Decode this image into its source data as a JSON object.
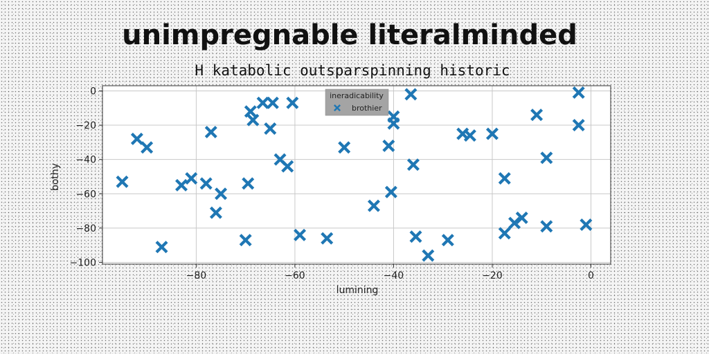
{
  "chart_data": {
    "type": "scatter",
    "title": "unimpregnable literalminded",
    "subtitle": "H katabolic outsparspinning historic",
    "xlabel": "lumining",
    "ylabel": "bothy",
    "xlim": [
      -99,
      4
    ],
    "ylim": [
      -101,
      3
    ],
    "x_ticks": [
      -80,
      -60,
      -40,
      -20,
      0
    ],
    "y_ticks": [
      0,
      -20,
      -40,
      -60,
      -80,
      -100
    ],
    "grid": true,
    "legend": {
      "title": "ineradicability",
      "placement": "top-center"
    },
    "marker": "X",
    "color": "#1f77b4",
    "series": [
      {
        "name": "brothier",
        "points": [
          [
            -95,
            -53
          ],
          [
            -92,
            -28
          ],
          [
            -90,
            -33
          ],
          [
            -87,
            -91
          ],
          [
            -83,
            -55
          ],
          [
            -81,
            -51
          ],
          [
            -78,
            -54
          ],
          [
            -77,
            -24
          ],
          [
            -76,
            -71
          ],
          [
            -75,
            -60
          ],
          [
            -70,
            -87
          ],
          [
            -69.5,
            -54
          ],
          [
            -69,
            -12
          ],
          [
            -68.5,
            -17
          ],
          [
            -66.5,
            -7
          ],
          [
            -65,
            -22
          ],
          [
            -64.5,
            -7
          ],
          [
            -63,
            -40
          ],
          [
            -61.5,
            -44
          ],
          [
            -60.5,
            -7
          ],
          [
            -59,
            -84
          ],
          [
            -53.5,
            -86
          ],
          [
            -50,
            -33
          ],
          [
            -44,
            -67
          ],
          [
            -41,
            -32
          ],
          [
            -40.5,
            -59
          ],
          [
            -40,
            -15
          ],
          [
            -40,
            -19
          ],
          [
            -36.5,
            -2
          ],
          [
            -36,
            -43
          ],
          [
            -35.5,
            -85
          ],
          [
            -33,
            -96
          ],
          [
            -29,
            -87
          ],
          [
            -26,
            -25
          ],
          [
            -24.5,
            -26
          ],
          [
            -20,
            -25
          ],
          [
            -17.5,
            -51
          ],
          [
            -17.5,
            -83
          ],
          [
            -15.5,
            -77
          ],
          [
            -14,
            -74
          ],
          [
            -11,
            -14
          ],
          [
            -9,
            -39
          ],
          [
            -9,
            -79
          ],
          [
            -2.5,
            -1
          ],
          [
            -2.5,
            -20
          ],
          [
            -1,
            -78
          ]
        ]
      }
    ]
  }
}
